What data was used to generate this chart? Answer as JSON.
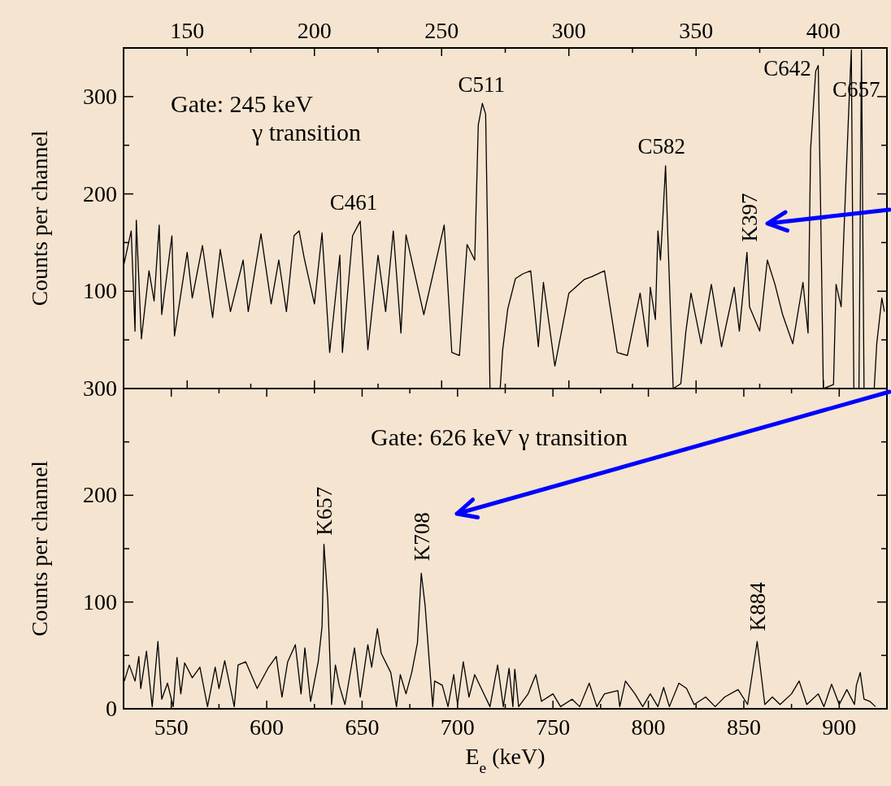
{
  "chart_data": [
    {
      "type": "line",
      "ylabel": "Counts per channel",
      "xlim": [
        125,
        425
      ],
      "xticks": [
        {
          "value": 125,
          "label": null
        },
        150,
        {
          "value": 175,
          "label": null
        },
        200,
        {
          "value": 225,
          "label": null
        },
        250,
        {
          "value": 275,
          "label": null
        },
        300,
        {
          "value": 325,
          "label": null
        },
        350,
        {
          "value": 375,
          "label": null
        },
        400,
        {
          "value": 425,
          "label": null
        }
      ],
      "ylim": [
        0,
        350
      ],
      "yticks": [
        {
          "value": 0,
          "label": null
        },
        {
          "value": 50,
          "label": null
        },
        100,
        {
          "value": 150,
          "label": null
        },
        200,
        {
          "value": 250,
          "label": null
        },
        300
      ],
      "annotations": [
        "Gate: 245 keV",
        "γ transition",
        {
          "text": "C461",
          "x": 218,
          "y": 172
        },
        {
          "text": "C511",
          "x": 266,
          "y": 293
        },
        {
          "text": "C582",
          "x": 338,
          "y": 229
        },
        {
          "text": "C642",
          "x": 398,
          "y": 332
        },
        {
          "text": "C657",
          "x": 411,
          "y": 348
        },
        {
          "text": "K397",
          "x": 370,
          "y": 140
        }
      ],
      "series": [
        {
          "color": "#000000",
          "x": [
            125,
            128,
            129.5,
            130,
            132,
            135,
            137,
            139,
            140,
            144,
            145,
            150,
            152,
            156,
            160,
            163,
            167,
            172,
            174,
            179,
            183,
            186,
            189,
            192,
            194,
            196,
            200,
            203,
            206,
            210,
            211,
            215,
            218,
            221,
            225,
            228,
            231,
            234,
            236,
            243,
            251,
            254,
            257,
            260,
            263,
            264.4,
            266,
            267.3,
            269,
            273,
            274,
            276,
            279,
            282,
            285,
            288,
            290,
            294.5,
            300,
            306,
            309,
            314,
            319,
            323,
            328,
            331,
            332,
            334,
            335,
            336,
            337,
            338,
            339,
            341,
            344,
            346,
            348,
            352,
            356,
            360,
            365,
            367,
            370,
            371,
            375,
            378,
            381,
            384,
            388,
            392,
            394,
            395,
            397,
            398,
            399,
            400,
            404,
            405,
            407,
            408,
            410,
            411,
            412,
            414,
            415,
            416,
            420,
            421,
            423,
            424
          ],
          "values": [
            126,
            162,
            59,
            173,
            51,
            121,
            90,
            168,
            76,
            157,
            54,
            140,
            93,
            147,
            73,
            143,
            79,
            132,
            79,
            159,
            87,
            132,
            79,
            157,
            162,
            134,
            87,
            160,
            37,
            137,
            37,
            157,
            172,
            40,
            137,
            79,
            162,
            57,
            158,
            76,
            168,
            37,
            34,
            148,
            132,
            271,
            293,
            282,
            0,
            0,
            40,
            82,
            113,
            118,
            121,
            43,
            109,
            23,
            98,
            112,
            115,
            121,
            37,
            34,
            98,
            43,
            104,
            71,
            162,
            132,
            179,
            229,
            148,
            0,
            5,
            59,
            98,
            46,
            107,
            43,
            104,
            59,
            140,
            84,
            59,
            132,
            107,
            76,
            46,
            109,
            57,
            246,
            326,
            332,
            176,
            0,
            4,
            107,
            84,
            154,
            287,
            348,
            0,
            0,
            348,
            0,
            0,
            46,
            93,
            79
          ]
        }
      ]
    },
    {
      "type": "line",
      "ylabel": "Counts per channel",
      "xlabel": "E$_{e}$ (keV)",
      "xlim": [
        525,
        925
      ],
      "xticks": [
        550,
        {
          "value": 575,
          "label": null
        },
        600,
        {
          "value": 625,
          "label": null
        },
        650,
        {
          "value": 675,
          "label": null
        },
        700,
        {
          "value": 725,
          "label": null
        },
        750,
        {
          "value": 775,
          "label": null
        },
        800,
        {
          "value": 825,
          "label": null
        },
        850,
        {
          "value": 875,
          "label": null
        },
        900
      ],
      "ylim": [
        0,
        300
      ],
      "yticks": [
        0,
        {
          "value": 50,
          "label": null
        },
        100,
        {
          "value": 150,
          "label": null
        },
        200,
        {
          "value": 250,
          "label": null
        },
        300
      ],
      "annotations": [
        "Gate: 626 keV γ  transition",
        {
          "text": "K657",
          "x": 630,
          "y": 154
        },
        {
          "text": "K708",
          "x": 681,
          "y": 127
        },
        {
          "text": "K884",
          "x": 857,
          "y": 63
        }
      ],
      "series": [
        {
          "color": "#000000",
          "x": [
            525.4,
            528,
            531,
            533,
            534,
            537,
            540,
            543,
            545,
            548,
            551,
            553,
            555,
            557,
            561,
            565,
            569,
            573,
            575,
            578,
            583,
            585,
            589,
            595,
            601,
            605,
            608,
            611,
            615,
            618,
            620,
            623,
            627,
            629,
            630,
            632,
            634,
            636,
            638,
            641,
            646,
            649,
            653,
            655,
            658,
            660,
            665,
            668,
            670,
            673,
            676,
            679,
            681,
            683,
            685,
            687,
            688,
            692,
            695,
            698,
            700,
            703,
            706,
            709,
            713,
            717,
            721,
            724,
            727,
            729,
            730,
            732,
            737,
            741,
            744,
            750,
            754,
            760,
            764,
            769,
            773,
            777,
            784,
            785,
            788,
            793,
            797,
            801,
            805,
            808,
            811,
            816,
            820,
            824,
            830,
            835,
            840,
            847,
            852,
            857,
            861,
            865,
            869,
            875,
            879,
            883,
            889,
            892,
            896,
            900,
            904,
            908,
            909,
            911,
            913,
            916,
            919
          ],
          "values": [
            26,
            41,
            26,
            49,
            19,
            54,
            2,
            63,
            9,
            24,
            2,
            48,
            14,
            43,
            29,
            39,
            2,
            39,
            19,
            45,
            2,
            41,
            44,
            19,
            39,
            49,
            11,
            44,
            60,
            14,
            57,
            7,
            44,
            77,
            154,
            102,
            4,
            41,
            22,
            4,
            57,
            11,
            60,
            39,
            75,
            52,
            34,
            2,
            32,
            14,
            34,
            62,
            127,
            97,
            49,
            2,
            26,
            22,
            2,
            32,
            4,
            44,
            11,
            32,
            17,
            2,
            41,
            2,
            38,
            2,
            37,
            2,
            14,
            32,
            7,
            14,
            2,
            9,
            2,
            24,
            2,
            14,
            17,
            2,
            26,
            14,
            2,
            14,
            2,
            20,
            2,
            24,
            19,
            4,
            11,
            2,
            11,
            18,
            4,
            63,
            4,
            11,
            4,
            14,
            26,
            4,
            14,
            2,
            23,
            4,
            18,
            4,
            22,
            34,
            9,
            7,
            2
          ]
        }
      ]
    }
  ]
}
